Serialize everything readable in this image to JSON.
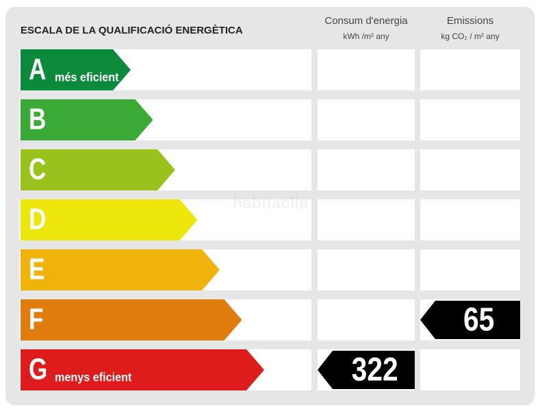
{
  "title": "ESCALA DE LA QUALIFICACIÓ ENERGÈTICA",
  "columns": [
    {
      "heading": "Consum d'energia",
      "unit": "kWh /m² any"
    },
    {
      "heading": "Emissions",
      "unit": "kg CO₂ / m² any"
    }
  ],
  "rows": [
    {
      "letter": "A",
      "label": "més eficient",
      "color": "#0b8a3c"
    },
    {
      "letter": "B",
      "color": "#3aa935"
    },
    {
      "letter": "C",
      "color": "#9ac21c"
    },
    {
      "letter": "D",
      "color": "#ece60b"
    },
    {
      "letter": "E",
      "color": "#efb30c"
    },
    {
      "letter": "F",
      "color": "#e07b0d"
    },
    {
      "letter": "G",
      "label": "menys eficient",
      "color": "#df1c1c"
    }
  ],
  "ratings": [
    {
      "class": "G",
      "value": 322
    },
    {
      "class": "F",
      "value": 65
    }
  ],
  "watermark": "habitaclia"
}
